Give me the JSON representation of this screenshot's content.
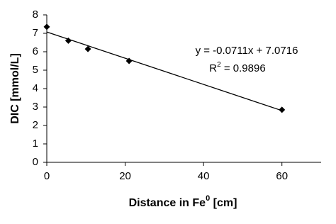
{
  "chart_data": {
    "type": "scatter",
    "x_label": {
      "text": "Distance in Fe",
      "sup": "0",
      "rest": " [cm]"
    },
    "y_label": "DIC [mmol/L]",
    "series": [
      {
        "color": "#000000",
        "x": [
          0,
          5.5,
          10.5,
          21,
          60
        ],
        "values": [
          7.35,
          6.6,
          6.15,
          5.5,
          2.85
        ]
      }
    ],
    "trendline": {
      "slope": -0.0711,
      "intercept": 7.0716,
      "x_range": [
        0,
        60
      ],
      "equation": "y = -0.0711x + 7.0716",
      "r2": {
        "base": "R",
        "sup": "2",
        "rest": " = 0.9896",
        "value": 0.9896
      }
    },
    "xlim": [
      0,
      70
    ],
    "xticks": [
      0,
      20,
      40,
      60
    ],
    "ylim": [
      0,
      8
    ],
    "yticks": [
      0,
      1,
      2,
      3,
      4,
      5,
      6,
      7,
      8
    ],
    "grid": false
  }
}
